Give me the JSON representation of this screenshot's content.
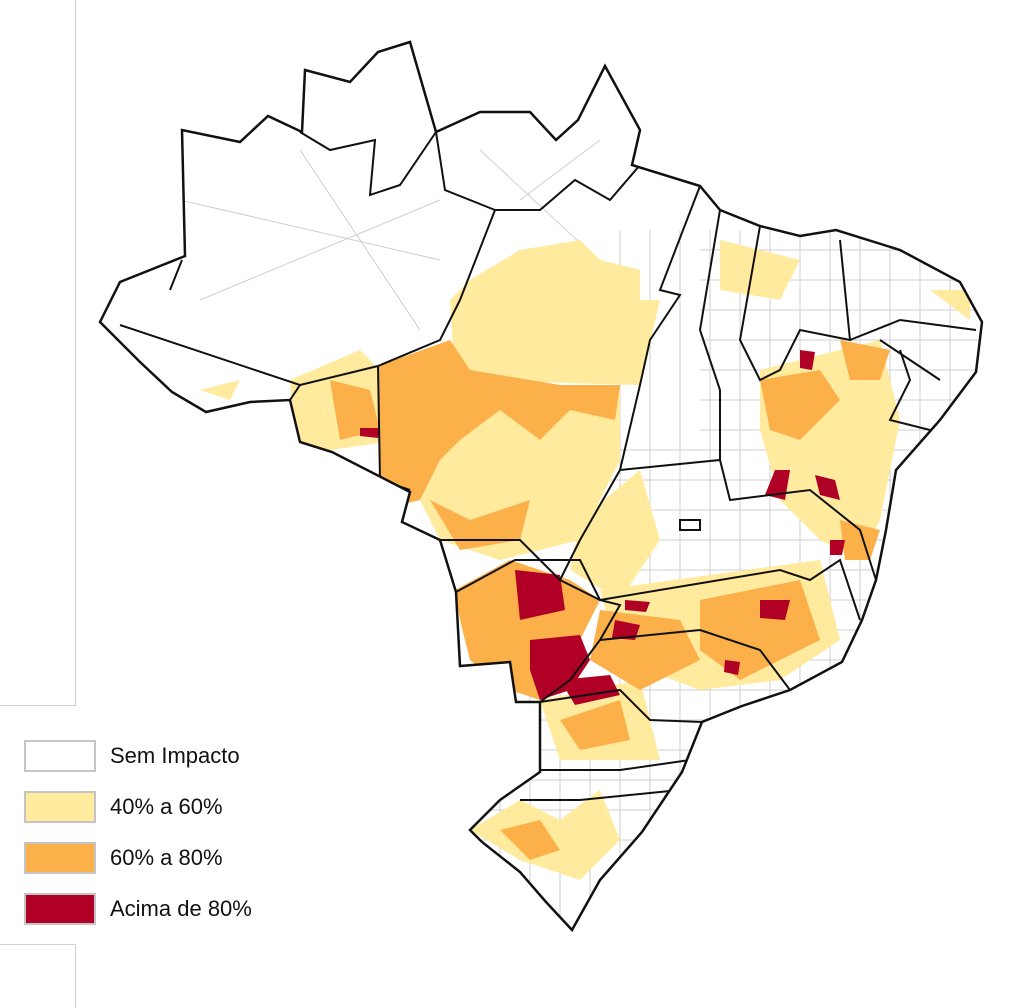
{
  "legend": {
    "items": [
      {
        "label": "Sem Impacto",
        "color": "#FFFFFF"
      },
      {
        "label": "40% a 60%",
        "color": "#FFEA9E"
      },
      {
        "label": "60% a 80%",
        "color": "#FBB04A"
      },
      {
        "label": "Acima de 80%",
        "color": "#B10026"
      }
    ]
  },
  "map": {
    "subject": "Brazil municipalities by impact class",
    "border_color": "#111111",
    "municipality_line_color": "#c8c8c8"
  }
}
